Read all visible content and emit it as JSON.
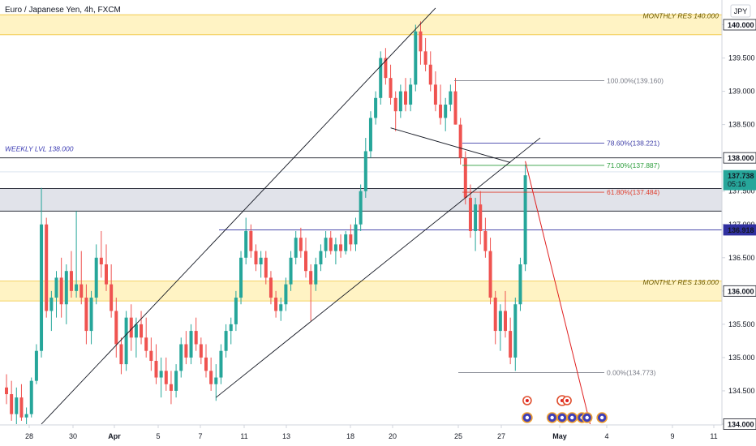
{
  "header": {
    "title": "Euro / Japanese Yen, 4h, FXCM",
    "currency": "JPY"
  },
  "colors": {
    "up": "#26a69a",
    "down": "#ef5350",
    "monthly_zone": "#fff3c4",
    "monthly_border": "#f0c53a",
    "weekly_zone": "#e1e3ea",
    "blue_line": "#3030a0",
    "trend": "#131722",
    "projection": "#e02020",
    "fib_100": "#787b86",
    "fib_786": "#4040a8",
    "fib_71": "#2e9e3e",
    "fib_618": "#e04030"
  },
  "chart_data": {
    "type": "candlestick",
    "title": "Euro / Japanese Yen, 4h, FXCM",
    "y_axis": {
      "min": 134.0,
      "max": 140.2,
      "tick_labels": [
        "140.000",
        "139.500",
        "139.000",
        "138.500",
        "138.000",
        "137.500",
        "137.000",
        "136.500",
        "136.000",
        "135.500",
        "135.000",
        "134.500",
        "134.000"
      ],
      "tick_values": [
        140.0,
        139.5,
        139.0,
        138.5,
        138.0,
        137.5,
        137.0,
        136.5,
        136.0,
        135.5,
        135.0,
        134.5,
        134.0
      ]
    },
    "x_axis": {
      "labels": [
        "28",
        "30",
        "Apr",
        "5",
        "7",
        "11",
        "13",
        "18",
        "20",
        "25",
        "27",
        "May",
        "4",
        "9",
        "11"
      ]
    },
    "price_badges": [
      {
        "value": "140.000",
        "price": 140.0,
        "style": "plain"
      },
      {
        "value": "138.000",
        "price": 138.0,
        "style": "plain"
      },
      {
        "value": "137.738",
        "price": 137.738,
        "style": "current",
        "timer": "05:16"
      },
      {
        "value": "136.918",
        "price": 136.918,
        "style": "blue"
      },
      {
        "value": "136.000",
        "price": 136.0,
        "style": "plain"
      },
      {
        "value": "134.000",
        "price": 134.0,
        "style": "plain"
      }
    ],
    "zones": [
      {
        "label": "MONTHLY RES 140.000",
        "top": 140.15,
        "bottom": 139.85,
        "kind": "monthly"
      },
      {
        "label": "MONTHLY RES 136.000",
        "top": 136.15,
        "bottom": 135.85,
        "kind": "monthly"
      },
      {
        "label": "",
        "top": 137.54,
        "bottom": 137.2,
        "kind": "weekly"
      }
    ],
    "weekly_level": {
      "label": "WEEKLY LVL 138.000",
      "price": 138.0
    },
    "blue_level": {
      "price": 136.918
    },
    "fibonacci": [
      {
        "label": "100.00%(139.160)",
        "price": 139.16,
        "key": "fib_100"
      },
      {
        "label": "78.60%(138.221)",
        "price": 138.221,
        "key": "fib_786"
      },
      {
        "label": "71.00%(137.887)",
        "price": 137.887,
        "key": "fib_71"
      },
      {
        "label": "61.80%(137.484)",
        "price": 137.484,
        "key": "fib_618"
      },
      {
        "label": "0.00%(134.773)",
        "price": 134.773,
        "key": "fib_100"
      }
    ],
    "candles": [
      {
        "o": 134.55,
        "h": 134.75,
        "l": 134.3,
        "c": 134.45
      },
      {
        "o": 134.45,
        "h": 134.65,
        "l": 134.05,
        "c": 134.15
      },
      {
        "o": 134.15,
        "h": 134.55,
        "l": 134.0,
        "c": 134.4
      },
      {
        "o": 134.4,
        "h": 134.6,
        "l": 134.05,
        "c": 134.1
      },
      {
        "o": 134.1,
        "h": 134.25,
        "l": 134.0,
        "c": 134.15
      },
      {
        "o": 134.15,
        "h": 134.7,
        "l": 134.1,
        "c": 134.65
      },
      {
        "o": 134.65,
        "h": 135.2,
        "l": 134.6,
        "c": 135.1
      },
      {
        "o": 135.1,
        "h": 137.55,
        "l": 135.0,
        "c": 137.0
      },
      {
        "o": 137.0,
        "h": 137.1,
        "l": 135.6,
        "c": 135.7
      },
      {
        "o": 135.7,
        "h": 136.0,
        "l": 135.4,
        "c": 135.9
      },
      {
        "o": 135.9,
        "h": 136.3,
        "l": 135.6,
        "c": 136.2
      },
      {
        "o": 136.2,
        "h": 136.5,
        "l": 135.6,
        "c": 135.8
      },
      {
        "o": 135.8,
        "h": 136.4,
        "l": 135.5,
        "c": 136.3
      },
      {
        "o": 136.3,
        "h": 136.6,
        "l": 135.9,
        "c": 136.0
      },
      {
        "o": 136.0,
        "h": 137.2,
        "l": 135.9,
        "c": 136.1
      },
      {
        "o": 136.1,
        "h": 136.6,
        "l": 135.8,
        "c": 135.9
      },
      {
        "o": 135.9,
        "h": 136.1,
        "l": 135.2,
        "c": 135.4
      },
      {
        "o": 135.4,
        "h": 136.0,
        "l": 135.2,
        "c": 135.9
      },
      {
        "o": 135.9,
        "h": 136.7,
        "l": 135.8,
        "c": 136.5
      },
      {
        "o": 136.5,
        "h": 136.9,
        "l": 136.2,
        "c": 136.4
      },
      {
        "o": 136.4,
        "h": 136.7,
        "l": 136.0,
        "c": 136.1
      },
      {
        "o": 136.1,
        "h": 136.4,
        "l": 135.6,
        "c": 135.7
      },
      {
        "o": 135.7,
        "h": 135.9,
        "l": 135.0,
        "c": 135.2
      },
      {
        "o": 135.2,
        "h": 135.3,
        "l": 134.75,
        "c": 134.9
      },
      {
        "o": 134.9,
        "h": 135.7,
        "l": 134.8,
        "c": 135.6
      },
      {
        "o": 135.6,
        "h": 135.8,
        "l": 135.1,
        "c": 135.3
      },
      {
        "o": 135.3,
        "h": 135.6,
        "l": 135.0,
        "c": 135.5
      },
      {
        "o": 135.5,
        "h": 135.7,
        "l": 135.2,
        "c": 135.3
      },
      {
        "o": 135.3,
        "h": 135.6,
        "l": 135.0,
        "c": 135.1
      },
      {
        "o": 135.1,
        "h": 135.3,
        "l": 134.8,
        "c": 134.95
      },
      {
        "o": 134.95,
        "h": 135.2,
        "l": 134.6,
        "c": 134.7
      },
      {
        "o": 134.7,
        "h": 135.0,
        "l": 134.4,
        "c": 134.8
      },
      {
        "o": 134.8,
        "h": 135.0,
        "l": 134.5,
        "c": 134.6
      },
      {
        "o": 134.6,
        "h": 134.8,
        "l": 134.3,
        "c": 134.5
      },
      {
        "o": 134.5,
        "h": 134.9,
        "l": 134.4,
        "c": 134.8
      },
      {
        "o": 134.8,
        "h": 135.3,
        "l": 134.7,
        "c": 135.2
      },
      {
        "o": 135.2,
        "h": 135.4,
        "l": 134.9,
        "c": 135.0
      },
      {
        "o": 135.0,
        "h": 135.5,
        "l": 134.9,
        "c": 135.4
      },
      {
        "o": 135.4,
        "h": 135.6,
        "l": 135.1,
        "c": 135.2
      },
      {
        "o": 135.2,
        "h": 135.3,
        "l": 134.9,
        "c": 135.0
      },
      {
        "o": 135.0,
        "h": 135.2,
        "l": 134.7,
        "c": 134.8
      },
      {
        "o": 134.8,
        "h": 135.0,
        "l": 134.5,
        "c": 134.6
      },
      {
        "o": 134.6,
        "h": 134.9,
        "l": 134.35,
        "c": 134.7
      },
      {
        "o": 134.7,
        "h": 135.2,
        "l": 134.6,
        "c": 135.1
      },
      {
        "o": 135.1,
        "h": 135.5,
        "l": 135.0,
        "c": 135.4
      },
      {
        "o": 135.4,
        "h": 135.6,
        "l": 135.2,
        "c": 135.5
      },
      {
        "o": 135.5,
        "h": 136.0,
        "l": 135.4,
        "c": 135.9
      },
      {
        "o": 135.9,
        "h": 136.6,
        "l": 135.8,
        "c": 136.5
      },
      {
        "o": 136.5,
        "h": 137.1,
        "l": 136.4,
        "c": 136.9
      },
      {
        "o": 136.9,
        "h": 137.0,
        "l": 136.5,
        "c": 136.6
      },
      {
        "o": 136.6,
        "h": 136.7,
        "l": 136.3,
        "c": 136.4
      },
      {
        "o": 136.4,
        "h": 136.6,
        "l": 136.2,
        "c": 136.5
      },
      {
        "o": 136.5,
        "h": 136.6,
        "l": 136.1,
        "c": 136.2
      },
      {
        "o": 136.2,
        "h": 136.3,
        "l": 135.8,
        "c": 135.9
      },
      {
        "o": 135.9,
        "h": 136.0,
        "l": 135.6,
        "c": 135.7
      },
      {
        "o": 135.7,
        "h": 135.9,
        "l": 135.55,
        "c": 135.8
      },
      {
        "o": 135.8,
        "h": 136.2,
        "l": 135.7,
        "c": 136.1
      },
      {
        "o": 136.1,
        "h": 136.6,
        "l": 136.0,
        "c": 136.5
      },
      {
        "o": 136.5,
        "h": 136.9,
        "l": 136.4,
        "c": 136.8
      },
      {
        "o": 136.8,
        "h": 136.95,
        "l": 136.5,
        "c": 136.6
      },
      {
        "o": 136.6,
        "h": 136.8,
        "l": 136.2,
        "c": 136.3
      },
      {
        "o": 136.3,
        "h": 136.4,
        "l": 135.55,
        "c": 136.1
      },
      {
        "o": 136.1,
        "h": 136.5,
        "l": 136.0,
        "c": 136.4
      },
      {
        "o": 136.4,
        "h": 136.7,
        "l": 136.3,
        "c": 136.6
      },
      {
        "o": 136.6,
        "h": 136.9,
        "l": 136.5,
        "c": 136.8
      },
      {
        "o": 136.8,
        "h": 136.9,
        "l": 136.55,
        "c": 136.6
      },
      {
        "o": 136.6,
        "h": 136.8,
        "l": 136.4,
        "c": 136.7
      },
      {
        "o": 136.7,
        "h": 136.85,
        "l": 136.5,
        "c": 136.6
      },
      {
        "o": 136.6,
        "h": 136.9,
        "l": 136.55,
        "c": 136.85
      },
      {
        "o": 136.85,
        "h": 137.0,
        "l": 136.6,
        "c": 136.7
      },
      {
        "o": 136.7,
        "h": 137.1,
        "l": 136.6,
        "c": 137.0
      },
      {
        "o": 137.0,
        "h": 137.6,
        "l": 136.9,
        "c": 137.5
      },
      {
        "o": 137.5,
        "h": 138.3,
        "l": 137.4,
        "c": 138.1
      },
      {
        "o": 138.1,
        "h": 138.7,
        "l": 138.0,
        "c": 138.6
      },
      {
        "o": 138.6,
        "h": 139.0,
        "l": 138.5,
        "c": 138.9
      },
      {
        "o": 138.9,
        "h": 139.6,
        "l": 138.8,
        "c": 139.5
      },
      {
        "o": 139.5,
        "h": 139.65,
        "l": 139.1,
        "c": 139.2
      },
      {
        "o": 139.2,
        "h": 139.4,
        "l": 138.8,
        "c": 138.9
      },
      {
        "o": 138.9,
        "h": 139.0,
        "l": 138.4,
        "c": 138.7
      },
      {
        "o": 138.7,
        "h": 139.1,
        "l": 138.6,
        "c": 139.0
      },
      {
        "o": 139.0,
        "h": 139.2,
        "l": 138.7,
        "c": 138.8
      },
      {
        "o": 138.8,
        "h": 139.2,
        "l": 138.7,
        "c": 139.1
      },
      {
        "o": 139.1,
        "h": 140.0,
        "l": 139.0,
        "c": 139.9
      },
      {
        "o": 139.9,
        "h": 140.05,
        "l": 139.4,
        "c": 139.6
      },
      {
        "o": 139.6,
        "h": 139.8,
        "l": 139.3,
        "c": 139.4
      },
      {
        "o": 139.4,
        "h": 139.6,
        "l": 139.0,
        "c": 139.1
      },
      {
        "o": 139.1,
        "h": 139.3,
        "l": 138.7,
        "c": 138.8
      },
      {
        "o": 138.8,
        "h": 139.1,
        "l": 138.5,
        "c": 138.6
      },
      {
        "o": 138.6,
        "h": 138.9,
        "l": 138.4,
        "c": 138.8
      },
      {
        "o": 138.8,
        "h": 139.1,
        "l": 138.7,
        "c": 139.0
      },
      {
        "o": 139.0,
        "h": 139.2,
        "l": 138.5,
        "c": 138.5
      },
      {
        "o": 138.5,
        "h": 138.6,
        "l": 137.9,
        "c": 138.0
      },
      {
        "o": 138.0,
        "h": 138.1,
        "l": 137.3,
        "c": 137.4
      },
      {
        "o": 137.4,
        "h": 137.6,
        "l": 136.8,
        "c": 136.9
      },
      {
        "o": 136.9,
        "h": 137.4,
        "l": 136.6,
        "c": 137.3
      },
      {
        "o": 137.3,
        "h": 137.5,
        "l": 136.7,
        "c": 136.9
      },
      {
        "o": 136.9,
        "h": 137.1,
        "l": 136.5,
        "c": 136.6
      },
      {
        "o": 136.6,
        "h": 136.8,
        "l": 135.8,
        "c": 135.9
      },
      {
        "o": 135.9,
        "h": 136.0,
        "l": 135.2,
        "c": 135.4
      },
      {
        "o": 135.4,
        "h": 135.8,
        "l": 135.1,
        "c": 135.7
      },
      {
        "o": 135.7,
        "h": 136.0,
        "l": 135.3,
        "c": 135.4
      },
      {
        "o": 135.4,
        "h": 135.6,
        "l": 134.9,
        "c": 135.0
      },
      {
        "o": 135.0,
        "h": 135.9,
        "l": 134.8,
        "c": 135.8
      },
      {
        "o": 135.8,
        "h": 136.5,
        "l": 135.7,
        "c": 136.4
      },
      {
        "o": 136.4,
        "h": 137.9,
        "l": 136.3,
        "c": 137.738
      }
    ],
    "trendlines": [
      {
        "from_index": 7,
        "from_price": 134.0,
        "to_index": 86,
        "to_price": 140.25,
        "key": "trend"
      },
      {
        "from_index": 42,
        "from_price": 134.4,
        "to_index": 107,
        "to_price": 138.3,
        "key": "trend"
      },
      {
        "from_index": 77,
        "from_price": 138.45,
        "to_index": 101,
        "to_price": 137.93,
        "key": "trend"
      }
    ],
    "projection": {
      "from_index": 104,
      "from_price": 137.95,
      "to_index": 117,
      "to_price": 134.0
    },
    "event_icons": [
      {
        "index": 106,
        "kind": "blue"
      },
      {
        "index": 106,
        "kind": "red-small"
      },
      {
        "index": 111,
        "kind": "blue"
      },
      {
        "index": 113,
        "kind": "blue"
      },
      {
        "index": 113,
        "kind": "red"
      },
      {
        "index": 114,
        "kind": "red-small"
      },
      {
        "index": 115,
        "kind": "blue"
      },
      {
        "index": 117,
        "kind": "blue"
      },
      {
        "index": 118,
        "kind": "blue"
      },
      {
        "index": 121,
        "kind": "blue"
      }
    ]
  }
}
